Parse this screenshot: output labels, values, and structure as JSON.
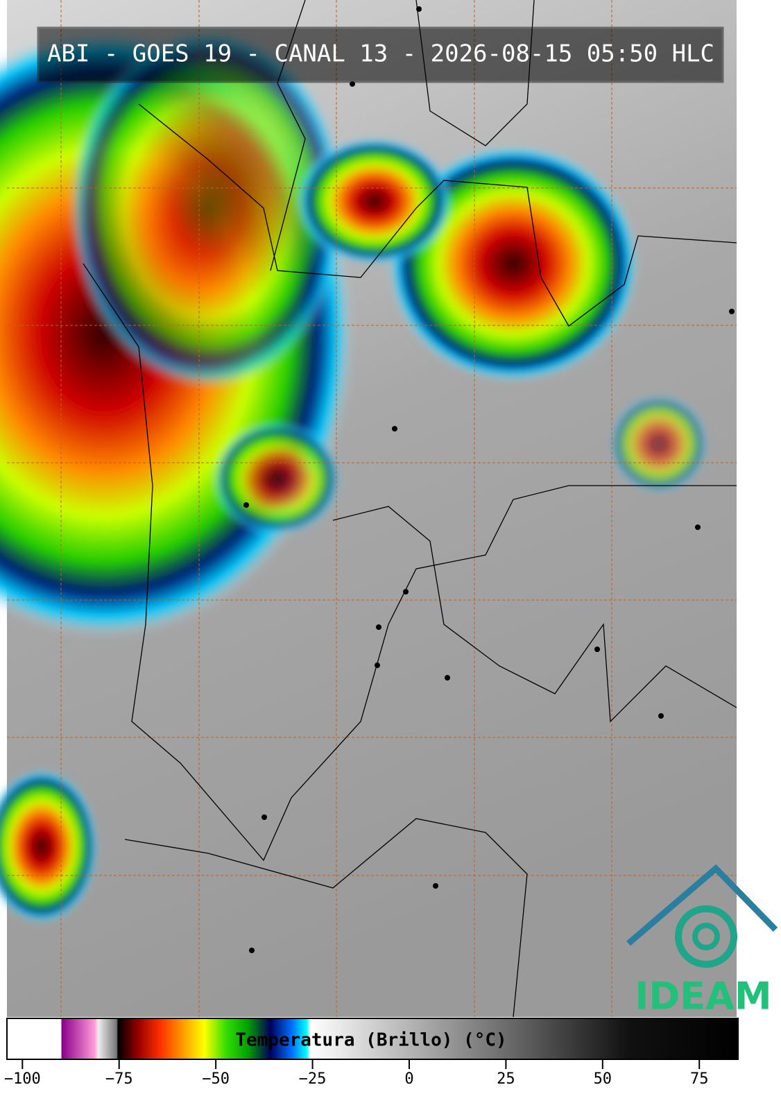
{
  "title": "ABI - GOES 19 - CANAL 13 - 2026-08-15 05:50 HLC",
  "logo": "IDEAM",
  "colorbar": {
    "label": "Temperatura (Brillo) (°C)",
    "lim": [
      -104,
      85
    ],
    "ticks": [
      {
        "value": -100,
        "label": "−100"
      },
      {
        "value": -75,
        "label": "−75"
      },
      {
        "value": -50,
        "label": "−50"
      },
      {
        "value": -25,
        "label": "−25"
      },
      0,
      25,
      50,
      75
    ]
  }
}
